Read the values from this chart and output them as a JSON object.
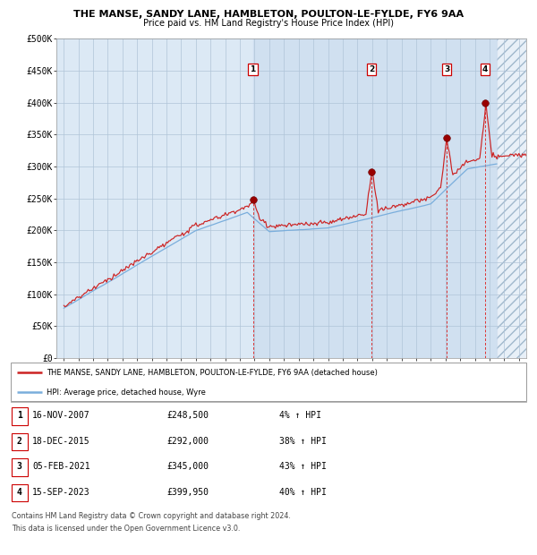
{
  "title_line1": "THE MANSE, SANDY LANE, HAMBLETON, POULTON-LE-FYLDE, FY6 9AA",
  "title_line2": "Price paid vs. HM Land Registry's House Price Index (HPI)",
  "ylim": [
    0,
    500000
  ],
  "yticks": [
    0,
    50000,
    100000,
    150000,
    200000,
    250000,
    300000,
    350000,
    400000,
    450000,
    500000
  ],
  "ytick_labels": [
    "£0",
    "£50K",
    "£100K",
    "£150K",
    "£200K",
    "£250K",
    "£300K",
    "£350K",
    "£400K",
    "£450K",
    "£500K"
  ],
  "xlim_start": 1994.5,
  "xlim_end": 2026.5,
  "hpi_line_color": "#7aaedc",
  "price_line_color": "#cc2222",
  "sale_dot_color": "#990000",
  "dashed_line_color": "#dd3333",
  "bg_color": "#dce9f5",
  "grid_color": "#b0c4d8",
  "legend_label_red": "THE MANSE, SANDY LANE, HAMBLETON, POULTON-LE-FYLDE, FY6 9AA (detached house)",
  "legend_label_blue": "HPI: Average price, detached house, Wyre",
  "sales": [
    {
      "num": 1,
      "date_label": "16-NOV-2007",
      "price_label": "£248,500",
      "pct_label": "4% ↑ HPI",
      "year": 2007.88,
      "price": 248500
    },
    {
      "num": 2,
      "date_label": "18-DEC-2015",
      "price_label": "£292,000",
      "pct_label": "38% ↑ HPI",
      "year": 2015.96,
      "price": 292000
    },
    {
      "num": 3,
      "date_label": "05-FEB-2021",
      "price_label": "£345,000",
      "pct_label": "43% ↑ HPI",
      "year": 2021.09,
      "price": 345000
    },
    {
      "num": 4,
      "date_label": "15-SEP-2023",
      "price_label": "£399,950",
      "pct_label": "40% ↑ HPI",
      "year": 2023.71,
      "price": 399950
    }
  ],
  "footer_line1": "Contains HM Land Registry data © Crown copyright and database right 2024.",
  "footer_line2": "This data is licensed under the Open Government Licence v3.0.",
  "table_rows": [
    [
      "1",
      "16-NOV-2007",
      "£248,500",
      "4% ↑ HPI"
    ],
    [
      "2",
      "18-DEC-2015",
      "£292,000",
      "38% ↑ HPI"
    ],
    [
      "3",
      "05-FEB-2021",
      "£345,000",
      "43% ↑ HPI"
    ],
    [
      "4",
      "15-SEP-2023",
      "£399,950",
      "40% ↑ HPI"
    ]
  ],
  "future_start": 2024.5
}
